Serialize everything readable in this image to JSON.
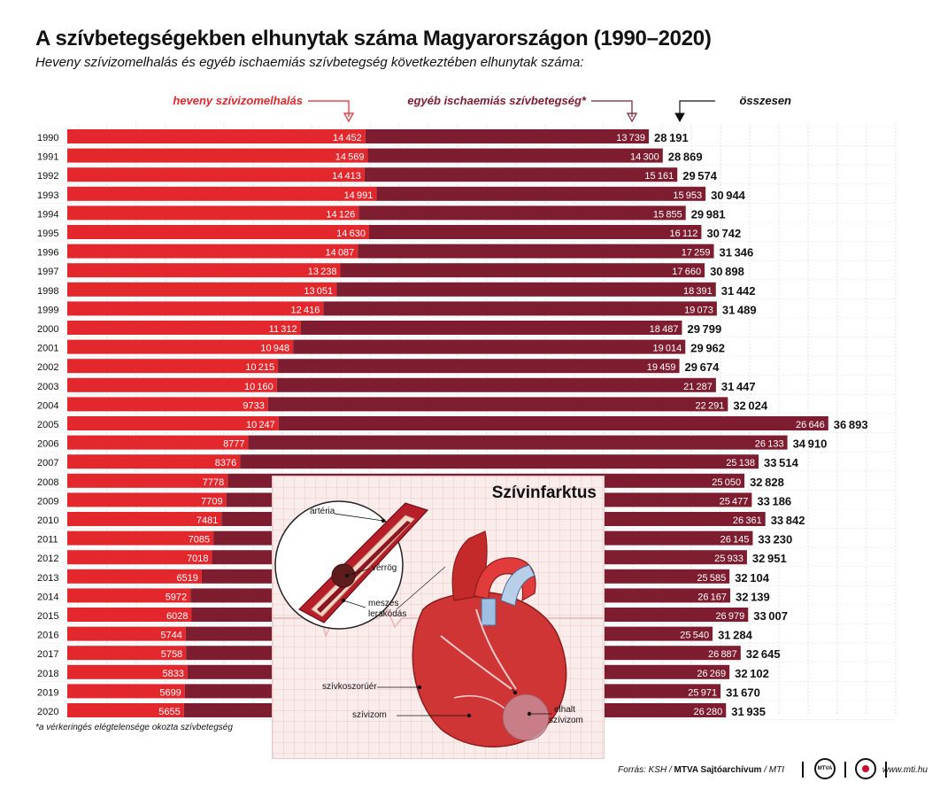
{
  "title": "A szívbetegségekben elhunytak száma Magyarországon (1990–2020)",
  "subtitle": "Heveny szívizomelhalás és egyéb ischaemiás szívbetegség következtében elhunytak száma:",
  "footnote": "*a vérkeringés elégtelensége okozta szívbetegség",
  "source": {
    "prefix": "Forrás: KSH / ",
    "org": "MTVA Sajtóarchívum",
    "suffix": " / MTI"
  },
  "website": "www.mti.hu",
  "logo_mtva": "MTVA",
  "colors": {
    "heveny": "#e2282d",
    "egyeb": "#7d1d2f",
    "total": "#111111",
    "grid": "#cccccc"
  },
  "chart_data": {
    "type": "bar",
    "orientation": "horizontal",
    "stacked": true,
    "categories": [
      "1990",
      "1991",
      "1992",
      "1993",
      "1994",
      "1995",
      "1996",
      "1997",
      "1998",
      "1999",
      "2000",
      "2001",
      "2002",
      "2003",
      "2004",
      "2005",
      "2006",
      "2007",
      "2008",
      "2009",
      "2010",
      "2011",
      "2012",
      "2013",
      "2014",
      "2015",
      "2016",
      "2017",
      "2018",
      "2019",
      "2020"
    ],
    "series": [
      {
        "name": "heveny szívizomelhalás",
        "values": [
          14452,
          14569,
          14413,
          14991,
          14126,
          14630,
          14087,
          13238,
          13051,
          12416,
          11312,
          10948,
          10215,
          10160,
          9733,
          10247,
          8777,
          8376,
          7778,
          7709,
          7481,
          7085,
          7018,
          6519,
          5972,
          6028,
          5744,
          5758,
          5833,
          5699,
          5655
        ]
      },
      {
        "name": "egyéb ischaemiás szívbetegség*",
        "values": [
          13739,
          14300,
          15161,
          15953,
          15855,
          16112,
          17259,
          17660,
          18391,
          19073,
          18487,
          19014,
          19459,
          21287,
          22291,
          26646,
          26133,
          25138,
          25050,
          25477,
          26361,
          26145,
          25933,
          25585,
          26167,
          26979,
          25540,
          26887,
          26269,
          25971,
          26280
        ]
      }
    ],
    "totals_label": "összesen",
    "totals": [
      28191,
      28869,
      29574,
      30944,
      29981,
      30742,
      31346,
      30898,
      31442,
      31489,
      29799,
      29962,
      29674,
      31447,
      32024,
      36893,
      34910,
      33514,
      32828,
      33186,
      33842,
      33230,
      32951,
      32104,
      32139,
      33007,
      31284,
      32645,
      32102,
      31670,
      31935
    ],
    "grid": true,
    "legend": "top"
  },
  "illustration": {
    "title": "Szívinfarktus",
    "labels": {
      "arteria": "artéria",
      "verrog": "vérrög",
      "meszes": "meszes",
      "lerakodas": "lerakódás",
      "koszoruer": "szívkoszorúér",
      "szivizom": "szívizom",
      "elhalt": "elhalt",
      "elhalt2": "szívizom"
    }
  }
}
